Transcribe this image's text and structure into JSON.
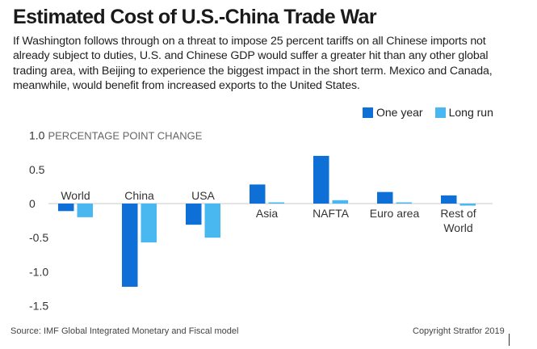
{
  "title": "Estimated Cost of U.S.-China Trade War",
  "subtitle": "If Washington follows through on a threat to impose 25 percent tariffs on all Chinese imports not already subject to duties, U.S. and Chinese GDP would suffer a greater hit than any other global trading area, with Beijing to experience the biggest impact in the short term. Mexico and Canada, meanwhile, would benefit from increased exports to the United States.",
  "source": "Source: IMF Global Integrated Monetary and Fiscal model",
  "copyright": "Copyright Stratfor 2019",
  "colors": {
    "one_year": "#0e6fd6",
    "long_run": "#4ab8f0"
  },
  "chart_data": {
    "type": "bar",
    "categories": [
      "World",
      "China",
      "USA",
      "Asia",
      "NAFTA",
      "Euro area",
      "Rest of World"
    ],
    "category_label_lines": [
      [
        "World"
      ],
      [
        "China"
      ],
      [
        "USA"
      ],
      [
        "Asia"
      ],
      [
        "NAFTA"
      ],
      [
        "Euro area"
      ],
      [
        "Rest of",
        "World"
      ]
    ],
    "series": [
      {
        "name": "One year",
        "values": [
          -0.11,
          -1.22,
          -0.31,
          0.28,
          0.7,
          0.17,
          0.12
        ]
      },
      {
        "name": "Long run",
        "values": [
          -0.2,
          -0.57,
          -0.5,
          0.01,
          0.05,
          0.01,
          -0.03
        ]
      }
    ],
    "ylabel": "PERCENTAGE POINT CHANGE",
    "yticks": [
      1.0,
      0.5,
      0,
      -0.5,
      -1.0,
      -1.5
    ],
    "ytick_labels": [
      "1.0",
      "0.5",
      "0",
      "-0.5",
      "-1.0",
      "-1.5"
    ],
    "ylim": [
      -1.5,
      1.0
    ],
    "grid": false,
    "legend_position": "top-right"
  }
}
